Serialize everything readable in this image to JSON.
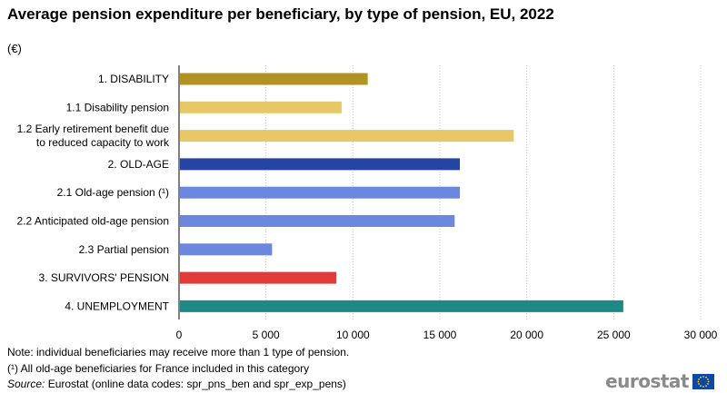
{
  "title": "Average pension expenditure per beneficiary, by type of pension, EU, 2022",
  "unit": "(€)",
  "notes": {
    "note1": "Note: individual beneficiaries may receive more than 1 type of pension.",
    "note2": "(¹) All old-age beneficiaries for France included in this category",
    "source_label": "Source:",
    "source_text": " Eurostat (online data codes: spr_pns_ben and spr_exp_pens)"
  },
  "logo": {
    "text": "eurostat",
    "icon": "eu-flag-icon"
  },
  "chart_data": {
    "type": "bar",
    "orientation": "horizontal",
    "categories": [
      [
        "1. DISABILITY"
      ],
      [
        "1.1 Disability pension"
      ],
      [
        "1.2 Early retirement benefit due",
        "to reduced capacity to work"
      ],
      [
        "2. OLD-AGE"
      ],
      [
        "2.1 Old-age pension (¹)"
      ],
      [
        "2.2 Anticipated old-age pension"
      ],
      [
        "2.3 Partial pension"
      ],
      [
        "3. SURVIVORS' PENSION"
      ],
      [
        "4. UNEMPLOYMENT"
      ]
    ],
    "values": [
      10800,
      9300,
      19200,
      16100,
      16100,
      15800,
      5300,
      9000,
      25500
    ],
    "colors": [
      "#b39224",
      "#e6c866",
      "#e6c866",
      "#2644a3",
      "#6b87de",
      "#6b87de",
      "#6b87de",
      "#e03c3c",
      "#1d8a86"
    ],
    "xlim": [
      0,
      30000
    ],
    "xticks": [
      0,
      5000,
      10000,
      15000,
      20000,
      25000,
      30000
    ],
    "xtick_labels": [
      "0",
      "5 000",
      "10 000",
      "15 000",
      "20 000",
      "25 000",
      "30 000"
    ],
    "grid": "vertical dotted",
    "legend": "none"
  }
}
